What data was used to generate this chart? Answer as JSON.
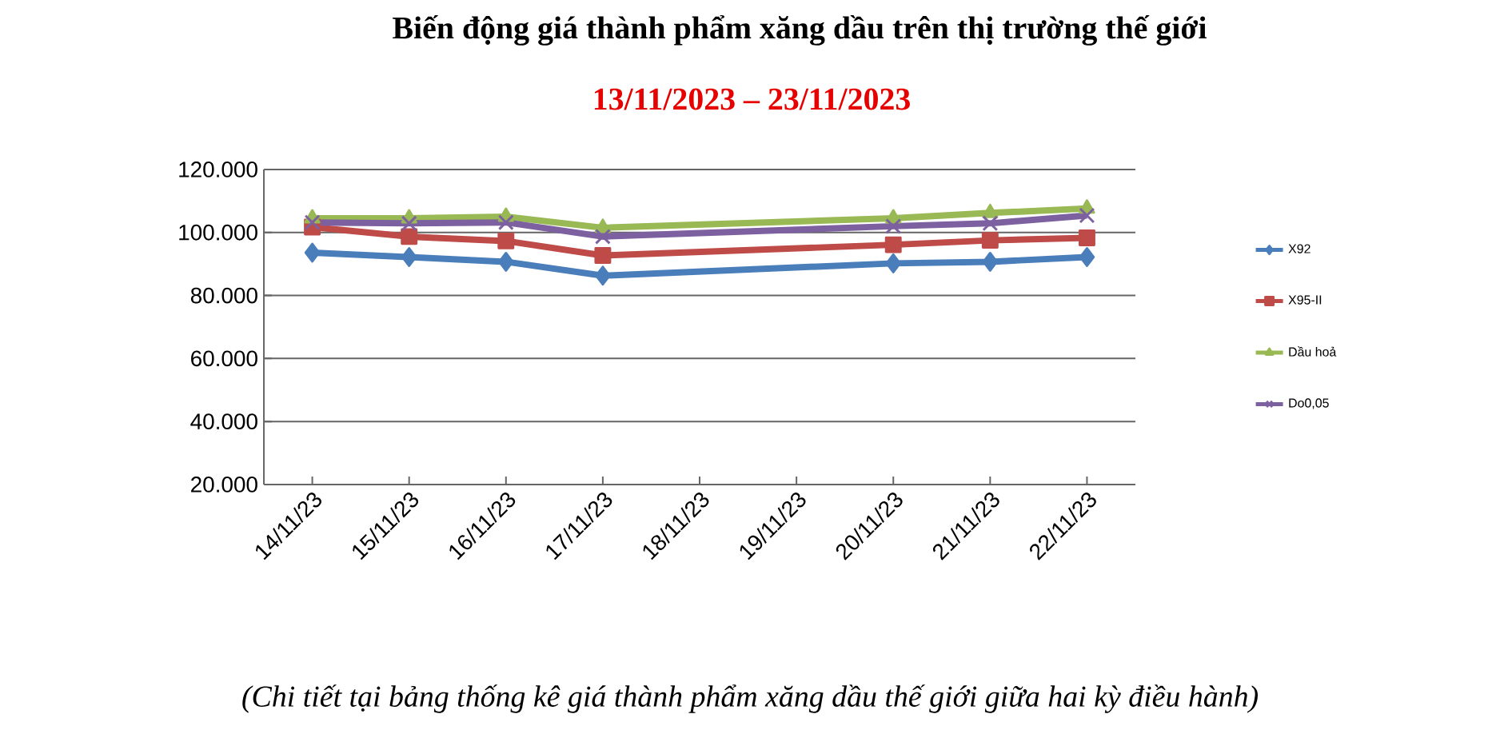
{
  "chart_data": {
    "type": "line",
    "title": "Biến động giá thành phẩm xăng dầu trên thị trường thế giới",
    "subtitle": "13/11/2023 – 23/11/2023",
    "categories": [
      "14/11/23",
      "15/11/23",
      "16/11/23",
      "17/11/23",
      "18/11/23",
      "19/11/23",
      "20/11/23",
      "21/11/23",
      "22/11/23"
    ],
    "series": [
      {
        "name": "X92",
        "color": "#4a7ebb",
        "marker": "diamond",
        "values": [
          93600,
          92200,
          90700,
          86300,
          null,
          null,
          90200,
          90700,
          92200
        ]
      },
      {
        "name": "X95-II",
        "color": "#be4b48",
        "marker": "square",
        "values": [
          101700,
          98700,
          97300,
          92700,
          null,
          null,
          96100,
          97500,
          98300
        ]
      },
      {
        "name": "Dầu hoả",
        "color": "#98b954",
        "marker": "triangle",
        "values": [
          104500,
          104500,
          105000,
          101500,
          null,
          null,
          104500,
          106200,
          107600
        ]
      },
      {
        "name": "Do0,05",
        "color": "#7d60a0",
        "marker": "cross",
        "values": [
          103200,
          102900,
          103200,
          98700,
          null,
          null,
          102000,
          102900,
          105400
        ]
      }
    ],
    "ylim": [
      20000,
      120000
    ],
    "yticks": [
      {
        "value": 20000,
        "label": "20.000"
      },
      {
        "value": 40000,
        "label": "40.000"
      },
      {
        "value": 60000,
        "label": "60.000"
      },
      {
        "value": 80000,
        "label": "80.000"
      },
      {
        "value": 100000,
        "label": "100.000"
      },
      {
        "value": 120000,
        "label": "120.000"
      }
    ],
    "grid": "y",
    "legend": "right",
    "annotations": [
      "(Chi tiết tại bảng thống kê giá thành phẩm xăng dầu thế giới giữa hai kỳ điều hành)"
    ]
  }
}
